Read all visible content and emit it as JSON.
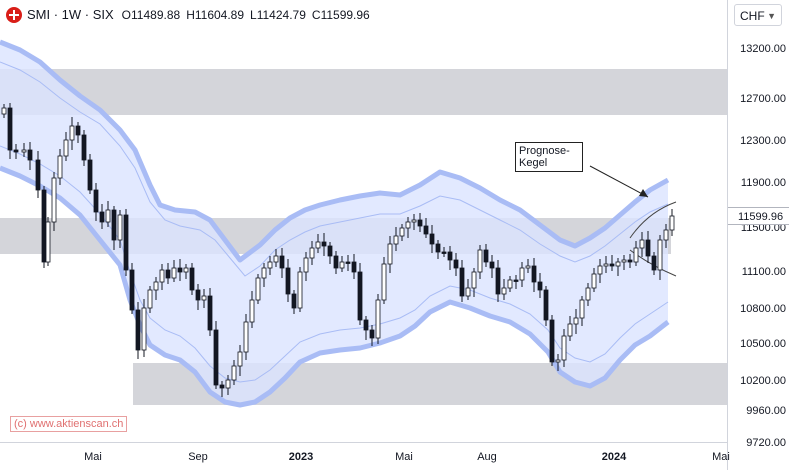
{
  "legend": {
    "symbol": "SMI · 1W · SIX",
    "open_label": "O",
    "open": "11489.88",
    "high_label": "H",
    "high": "11604.89",
    "low_label": "L",
    "low": "11424.79",
    "close_label": "C",
    "close": "11599.96"
  },
  "currency": "CHF",
  "price_axis": {
    "ticks": [
      "13200.00",
      "12700.00",
      "12300.00",
      "11900.00",
      "11500.00",
      "11100.00",
      "10800.00",
      "10500.00",
      "10200.00",
      "9960.00",
      "9720.00"
    ],
    "current_price": "11599.96"
  },
  "time_axis": {
    "labels": [
      "Mai",
      "Sep",
      "2023",
      "Mai",
      "Aug",
      "2024",
      "Mai"
    ]
  },
  "annotation": {
    "line1": "Prognose-",
    "line2": "Kegel"
  },
  "watermark": "(c) www.aktienscan.ch",
  "colors": {
    "band_fill": "#dbe3ff",
    "band_outline": "#a9bcf5",
    "zone_fill": "#b0b3bb",
    "candle_stroke": "#131722",
    "bull_fill": "#ffffff",
    "bear_fill": "#131722"
  }
}
